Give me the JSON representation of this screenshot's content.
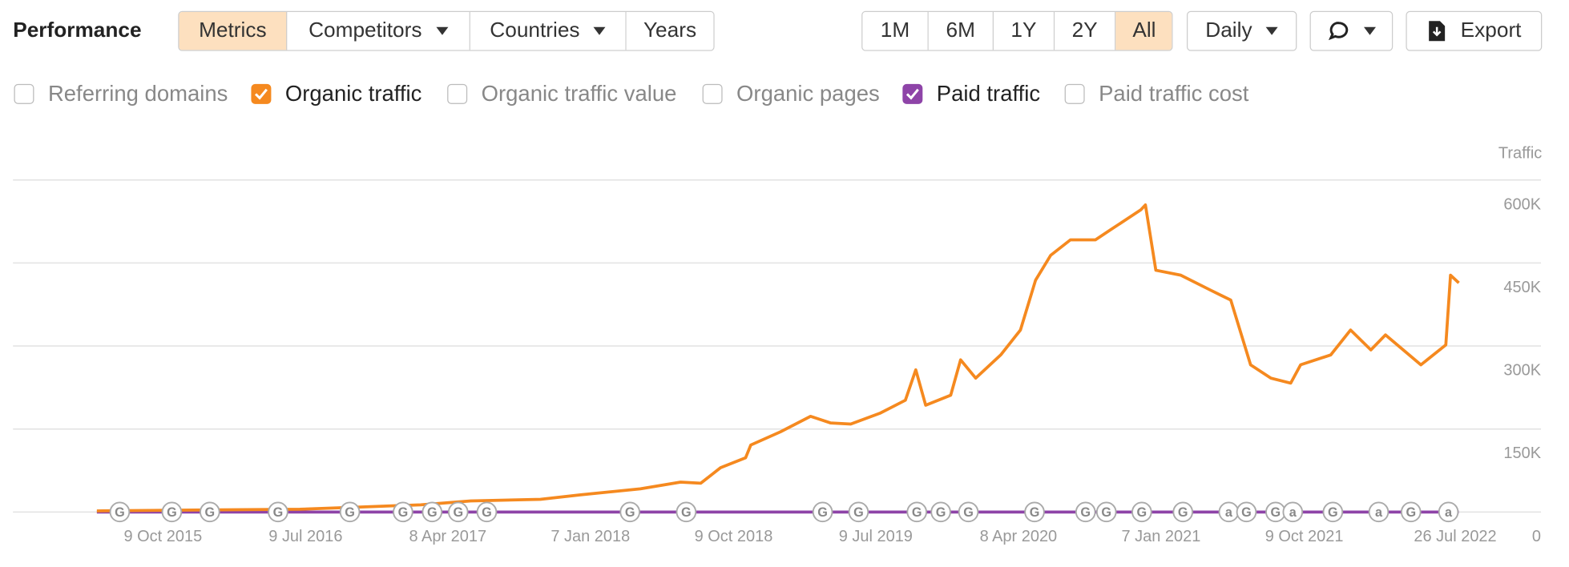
{
  "header": {
    "title": "Performance",
    "tabs": [
      {
        "label": "Metrics",
        "active": true
      },
      {
        "label": "Competitors",
        "dropdown": true
      },
      {
        "label": "Countries",
        "dropdown": true
      },
      {
        "label": "Years"
      }
    ],
    "ranges": [
      {
        "label": "1M"
      },
      {
        "label": "6M"
      },
      {
        "label": "1Y"
      },
      {
        "label": "2Y"
      },
      {
        "label": "All",
        "active": true
      }
    ],
    "interval": "Daily",
    "export": "Export"
  },
  "metrics": [
    {
      "label": "Referring domains",
      "checked": false
    },
    {
      "label": "Organic traffic",
      "checked": true,
      "color": "#f5891f"
    },
    {
      "label": "Organic traffic value",
      "checked": false
    },
    {
      "label": "Organic pages",
      "checked": false
    },
    {
      "label": "Paid traffic",
      "checked": true,
      "color": "#8e44a8"
    },
    {
      "label": "Paid traffic cost",
      "checked": false
    }
  ],
  "chart_data": {
    "type": "line",
    "y_label": "Traffic",
    "grid": true,
    "xlim": [
      "2014-12-25",
      "2022-09-23"
    ],
    "xticks": [
      {
        "value": "2015-10-09",
        "label": "9 Oct 2015"
      },
      {
        "value": "2016-07-09",
        "label": "9 Jul 2016"
      },
      {
        "value": "2017-04-08",
        "label": "8 Apr 2017"
      },
      {
        "value": "2018-01-07",
        "label": "7 Jan 2018"
      },
      {
        "value": "2018-10-09",
        "label": "9 Oct 2018"
      },
      {
        "value": "2019-07-09",
        "label": "9 Jul 2019"
      },
      {
        "value": "2020-04-08",
        "label": "8 Apr 2020"
      },
      {
        "value": "2021-01-07",
        "label": "7 Jan 2021"
      },
      {
        "value": "2021-10-09",
        "label": "9 Oct 2021"
      },
      {
        "value": "2022-07-26",
        "label": "26 Jul 2022"
      }
    ],
    "ylim": [
      0,
      600000
    ],
    "yticks": [
      0,
      {
        "value": 150000,
        "label": "150K"
      },
      {
        "value": 300000,
        "label": "300K"
      },
      {
        "value": 450000,
        "label": "450K"
      },
      {
        "value": 600000,
        "label": "600K"
      }
    ],
    "series": [
      {
        "name": "Organic traffic",
        "color": "#f5891f",
        "x": [
          "2015-06-04",
          "2016-01-27",
          "2016-06-28",
          "2016-10-22",
          "2017-02-15",
          "2017-05-22",
          "2017-10-03",
          "2017-12-19",
          "2018-04-13",
          "2018-06-29",
          "2018-08-07",
          "2018-09-14",
          "2018-11-01",
          "2018-11-11",
          "2019-01-07",
          "2019-03-06",
          "2019-04-13",
          "2019-05-22",
          "2019-07-18",
          "2019-09-04",
          "2019-09-24",
          "2019-10-13",
          "2019-11-30",
          "2019-12-19",
          "2020-01-17",
          "2020-03-05",
          "2020-04-12",
          "2020-05-11",
          "2020-06-09",
          "2020-07-17",
          "2020-09-03",
          "2020-10-02",
          "2020-11-29",
          "2020-12-08",
          "2020-12-28",
          "2021-02-14",
          "2021-04-12",
          "2021-05-21",
          "2021-06-28",
          "2021-08-06",
          "2021-09-13",
          "2021-10-02",
          "2021-11-29",
          "2022-01-06",
          "2022-02-14",
          "2022-03-14",
          "2022-05-21",
          "2022-07-08",
          "2022-07-17",
          "2022-08-02"
        ],
        "values": [
          2000,
          4000,
          5000,
          9000,
          13000,
          20000,
          23000,
          31000,
          42000,
          54000,
          52000,
          80000,
          98000,
          121000,
          145000,
          173000,
          161000,
          159000,
          179000,
          202000,
          257000,
          193000,
          211000,
          275000,
          242000,
          284000,
          329000,
          419000,
          464000,
          492000,
          492000,
          510000,
          546000,
          555000,
          437000,
          428000,
          401000,
          383000,
          266000,
          242000,
          233000,
          266000,
          284000,
          329000,
          293000,
          320000,
          266000,
          302000,
          428000,
          414000
        ]
      },
      {
        "name": "Paid traffic",
        "color": "#8e44a8",
        "x": [
          "2015-06-04",
          "2022-08-02"
        ],
        "values": [
          0,
          0
        ]
      }
    ],
    "markers": [
      {
        "x": "2015-07-18",
        "label": "G"
      },
      {
        "x": "2015-10-26",
        "label": "G"
      },
      {
        "x": "2016-01-07",
        "label": "G"
      },
      {
        "x": "2016-05-17",
        "label": "G"
      },
      {
        "x": "2016-10-02",
        "label": "G"
      },
      {
        "x": "2017-01-12",
        "label": "G"
      },
      {
        "x": "2017-03-09",
        "label": "G"
      },
      {
        "x": "2017-04-28",
        "label": "G"
      },
      {
        "x": "2017-06-22",
        "label": "G"
      },
      {
        "x": "2018-03-24",
        "label": "G"
      },
      {
        "x": "2018-07-10",
        "label": "G"
      },
      {
        "x": "2019-03-29",
        "label": "G"
      },
      {
        "x": "2019-06-06",
        "label": "G"
      },
      {
        "x": "2019-09-26",
        "label": "G"
      },
      {
        "x": "2019-11-11",
        "label": "G"
      },
      {
        "x": "2020-01-03",
        "label": "G"
      },
      {
        "x": "2020-05-09",
        "label": "G"
      },
      {
        "x": "2020-08-15",
        "label": "G"
      },
      {
        "x": "2020-09-24",
        "label": "G"
      },
      {
        "x": "2020-12-01",
        "label": "G"
      },
      {
        "x": "2021-02-18",
        "label": "G"
      },
      {
        "x": "2021-05-17",
        "label": "a"
      },
      {
        "x": "2021-06-20",
        "label": "G"
      },
      {
        "x": "2021-08-15",
        "label": "G"
      },
      {
        "x": "2021-09-17",
        "label": "a"
      },
      {
        "x": "2021-12-03",
        "label": "G"
      },
      {
        "x": "2022-03-01",
        "label": "a"
      },
      {
        "x": "2022-05-02",
        "label": "G"
      },
      {
        "x": "2022-07-13",
        "label": "a"
      }
    ]
  }
}
